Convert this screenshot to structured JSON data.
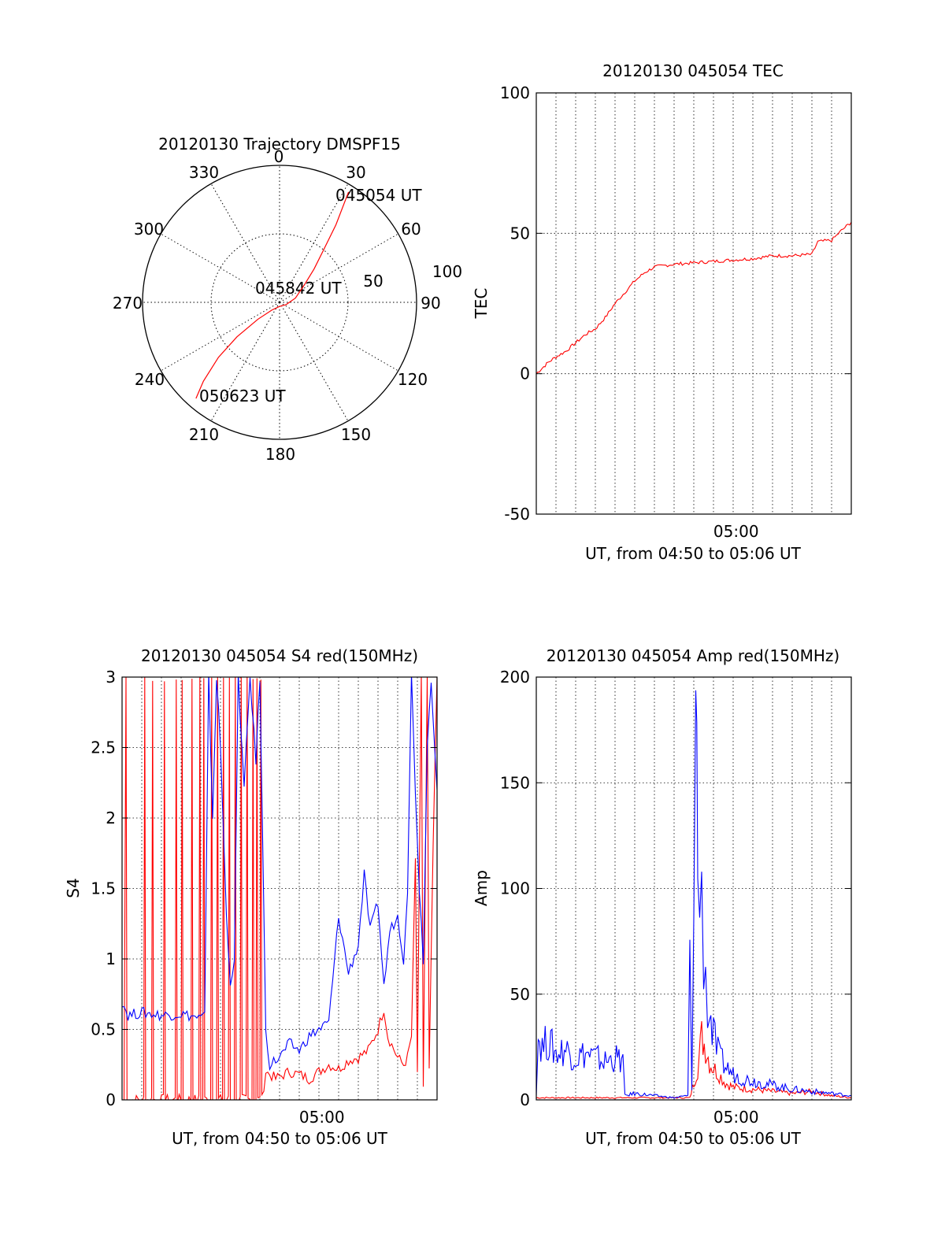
{
  "chart_data": [
    {
      "id": "polar",
      "type": "scatter",
      "title": "20120130 Trajectory DMSPF15",
      "subtype": "polar-trajectory",
      "azimuth_labels": [
        "0",
        "30",
        "60",
        "90",
        "120",
        "150",
        "180",
        "210",
        "240",
        "270",
        "300",
        "330"
      ],
      "radial_labels": [
        "50",
        "100"
      ],
      "trajectory": {
        "color": "#ff0000",
        "points": [
          [
            32,
            95
          ],
          [
            36,
            70
          ],
          [
            40,
            50
          ],
          [
            46,
            35
          ],
          [
            55,
            22
          ],
          [
            75,
            12
          ],
          [
            110,
            5
          ],
          [
            180,
            3
          ],
          [
            225,
            8
          ],
          [
            232,
            20
          ],
          [
            231,
            40
          ],
          [
            228,
            60
          ],
          [
            224,
            80
          ],
          [
            221,
            93
          ]
        ]
      },
      "annotations": [
        {
          "text": "045054 UT",
          "az": 36,
          "r": 100
        },
        {
          "text": "045842 UT",
          "az": 295,
          "r": 10
        },
        {
          "text": "050623 UT",
          "az": 224,
          "r": 93
        }
      ]
    },
    {
      "id": "tec",
      "type": "line",
      "title": "20120130 045054 TEC",
      "xlabel": "UT, from 04:50 to 05:06 UT",
      "ylabel": "TEC",
      "xlim": [
        0,
        16
      ],
      "ylim": [
        -50,
        100
      ],
      "yticks": [
        -50,
        0,
        50,
        100
      ],
      "xtick_labels": [
        {
          "x": 10.15,
          "label": "05:00"
        }
      ],
      "grid": true,
      "series": [
        {
          "color": "#ff0000",
          "points": [
            [
              0.0,
              0
            ],
            [
              0.3,
              2
            ],
            [
              0.6,
              4
            ],
            [
              1.0,
              6
            ],
            [
              1.5,
              8
            ],
            [
              2.0,
              11
            ],
            [
              2.5,
              14
            ],
            [
              3.0,
              16
            ],
            [
              3.5,
              20
            ],
            [
              4.0,
              25
            ],
            [
              4.5,
              29
            ],
            [
              5.0,
              33
            ],
            [
              5.5,
              36
            ],
            [
              6.0,
              38
            ],
            [
              7.0,
              39
            ],
            [
              8.0,
              39.5
            ],
            [
              9.0,
              40
            ],
            [
              10.0,
              40.5
            ],
            [
              11.0,
              41
            ],
            [
              12.0,
              42
            ],
            [
              13.0,
              42
            ],
            [
              14.0,
              42.5
            ],
            [
              14.3,
              47
            ],
            [
              15.0,
              47.5
            ],
            [
              15.5,
              51
            ],
            [
              16.0,
              54
            ]
          ]
        }
      ]
    },
    {
      "id": "s4",
      "type": "line",
      "title": "20120130 045054 S4 red(150MHz)",
      "xlabel": "UT, from 04:50 to 05:06 UT",
      "ylabel": "S4",
      "xlim": [
        0,
        16
      ],
      "ylim": [
        0,
        3
      ],
      "yticks": [
        0,
        0.5,
        1,
        1.5,
        2,
        2.5,
        3
      ],
      "xtick_labels": [
        {
          "x": 10.15,
          "label": "05:00"
        }
      ],
      "grid": true,
      "series": [
        {
          "color": "#ff0000",
          "points": [
            [
              0.1,
              0
            ],
            [
              0.2,
              3
            ],
            [
              0.25,
              0
            ],
            [
              1.1,
              0
            ],
            [
              1.15,
              3
            ],
            [
              1.2,
              0
            ],
            [
              1.5,
              0
            ],
            [
              1.55,
              3
            ],
            [
              1.6,
              0
            ],
            [
              2.1,
              0
            ],
            [
              2.15,
              3
            ],
            [
              2.2,
              0
            ],
            [
              2.7,
              0
            ],
            [
              2.75,
              3
            ],
            [
              2.8,
              0
            ],
            [
              3.0,
              0
            ],
            [
              3.05,
              3
            ],
            [
              3.1,
              0
            ],
            [
              3.5,
              0
            ],
            [
              3.55,
              3
            ],
            [
              3.6,
              0
            ],
            [
              3.9,
              0
            ],
            [
              3.95,
              3
            ],
            [
              4.0,
              0
            ],
            [
              4.1,
              0
            ],
            [
              4.15,
              3
            ],
            [
              4.2,
              0
            ],
            [
              4.5,
              0
            ],
            [
              4.55,
              3
            ],
            [
              4.6,
              0
            ],
            [
              4.8,
              0
            ],
            [
              4.85,
              3
            ],
            [
              4.9,
              0
            ],
            [
              5.1,
              0
            ],
            [
              5.15,
              3
            ],
            [
              5.2,
              0
            ],
            [
              5.4,
              0
            ],
            [
              5.45,
              3
            ],
            [
              5.5,
              0
            ],
            [
              5.7,
              0
            ],
            [
              5.75,
              3
            ],
            [
              5.8,
              0
            ],
            [
              6.0,
              0
            ],
            [
              6.05,
              3
            ],
            [
              6.1,
              0
            ],
            [
              6.3,
              0
            ],
            [
              6.35,
              3
            ],
            [
              6.4,
              0
            ],
            [
              6.6,
              0
            ],
            [
              6.65,
              3
            ],
            [
              6.7,
              0
            ],
            [
              6.8,
              0
            ],
            [
              6.85,
              3
            ],
            [
              6.9,
              0
            ],
            [
              7.0,
              0
            ],
            [
              7.05,
              3
            ],
            [
              7.1,
              0
            ],
            [
              7.3,
              0.2
            ],
            [
              7.8,
              0.15
            ],
            [
              8.5,
              0.2
            ],
            [
              9.0,
              0.18
            ],
            [
              9.5,
              0.15
            ],
            [
              10.0,
              0.2
            ],
            [
              10.5,
              0.25
            ],
            [
              11.0,
              0.22
            ],
            [
              11.5,
              0.28
            ],
            [
              12.0,
              0.3
            ],
            [
              12.5,
              0.35
            ],
            [
              13.0,
              0.5
            ],
            [
              13.3,
              0.65
            ],
            [
              13.5,
              0.45
            ],
            [
              14.0,
              0.3
            ],
            [
              14.3,
              0.25
            ],
            [
              14.5,
              0.3
            ],
            [
              14.7,
              0.45
            ],
            [
              14.9,
              1.7
            ],
            [
              15.0,
              0.2
            ],
            [
              15.2,
              3
            ],
            [
              15.3,
              0.1
            ],
            [
              15.5,
              3
            ],
            [
              15.6,
              0.2
            ],
            [
              15.8,
              1.8
            ],
            [
              16.0,
              3
            ]
          ]
        },
        {
          "color": "#0000ff",
          "points": [
            [
              0.0,
              0.7
            ],
            [
              0.3,
              0.6
            ],
            [
              1.0,
              0.62
            ],
            [
              2.0,
              0.6
            ],
            [
              3.0,
              0.61
            ],
            [
              4.0,
              0.58
            ],
            [
              4.2,
              0.6
            ],
            [
              4.4,
              3
            ],
            [
              4.6,
              2
            ],
            [
              4.8,
              3
            ],
            [
              5.0,
              2.5
            ],
            [
              5.3,
              1.3
            ],
            [
              5.5,
              0.85
            ],
            [
              5.7,
              0.95
            ],
            [
              5.9,
              3
            ],
            [
              6.2,
              2.2
            ],
            [
              6.5,
              3
            ],
            [
              6.8,
              2.4
            ],
            [
              7.0,
              3
            ],
            [
              7.3,
              0.5
            ],
            [
              7.5,
              0.25
            ],
            [
              8.0,
              0.3
            ],
            [
              8.5,
              0.4
            ],
            [
              9.0,
              0.35
            ],
            [
              9.5,
              0.45
            ],
            [
              10.0,
              0.5
            ],
            [
              10.5,
              0.55
            ],
            [
              11.0,
              1.3
            ],
            [
              11.5,
              0.9
            ],
            [
              12.0,
              1.1
            ],
            [
              12.3,
              1.6
            ],
            [
              12.6,
              1.2
            ],
            [
              13.0,
              1.4
            ],
            [
              13.3,
              0.8
            ],
            [
              13.6,
              1.2
            ],
            [
              14.0,
              1.3
            ],
            [
              14.3,
              1.0
            ],
            [
              14.5,
              1.5
            ],
            [
              14.7,
              3.0
            ],
            [
              14.9,
              2.2
            ],
            [
              15.1,
              1.5
            ],
            [
              15.3,
              1.0
            ],
            [
              15.5,
              2.5
            ],
            [
              15.7,
              3
            ],
            [
              16.0,
              2.2
            ]
          ]
        }
      ]
    },
    {
      "id": "amp",
      "type": "line",
      "title": "20120130 045054 Amp red(150MHz)",
      "xlabel": "UT, from 04:50 to 05:06 UT",
      "ylabel": "Amp",
      "xlim": [
        0,
        16
      ],
      "ylim": [
        0,
        200
      ],
      "yticks": [
        0,
        50,
        100,
        150,
        200
      ],
      "xtick_labels": [
        {
          "x": 10.15,
          "label": "05:00"
        }
      ],
      "grid": true,
      "series": [
        {
          "color": "#ff0000",
          "points": [
            [
              0.0,
              1
            ],
            [
              2.0,
              1
            ],
            [
              4.0,
              1
            ],
            [
              6.0,
              1
            ],
            [
              7.8,
              1
            ],
            [
              8.0,
              8
            ],
            [
              8.2,
              15
            ],
            [
              8.4,
              30
            ],
            [
              8.6,
              25
            ],
            [
              8.8,
              18
            ],
            [
              9.0,
              15
            ],
            [
              9.3,
              12
            ],
            [
              9.6,
              8
            ],
            [
              10.0,
              6
            ],
            [
              11.0,
              5
            ],
            [
              12.0,
              4
            ],
            [
              13.0,
              3
            ],
            [
              14.0,
              4
            ],
            [
              15.0,
              2
            ],
            [
              16.0,
              1
            ]
          ]
        },
        {
          "color": "#0000ff",
          "points": [
            [
              0.0,
              3
            ],
            [
              0.1,
              30
            ],
            [
              0.3,
              25
            ],
            [
              0.6,
              28
            ],
            [
              1.0,
              22
            ],
            [
              1.5,
              24
            ],
            [
              2.0,
              20
            ],
            [
              2.5,
              22
            ],
            [
              3.0,
              20
            ],
            [
              3.5,
              18
            ],
            [
              4.0,
              20
            ],
            [
              4.4,
              18
            ],
            [
              4.5,
              2
            ],
            [
              5.0,
              3
            ],
            [
              6.0,
              2
            ],
            [
              7.0,
              1
            ],
            [
              7.7,
              2
            ],
            [
              7.8,
              60
            ],
            [
              7.9,
              5
            ],
            [
              8.0,
              120
            ],
            [
              8.1,
              180
            ],
            [
              8.15,
              160
            ],
            [
              8.2,
              110
            ],
            [
              8.3,
              95
            ],
            [
              8.4,
              90
            ],
            [
              8.5,
              75
            ],
            [
              8.6,
              60
            ],
            [
              8.7,
              45
            ],
            [
              8.8,
              40
            ],
            [
              9.0,
              30
            ],
            [
              9.3,
              20
            ],
            [
              9.6,
              16
            ],
            [
              10.0,
              12
            ],
            [
              10.5,
              10
            ],
            [
              11.0,
              9
            ],
            [
              11.5,
              8
            ],
            [
              12.0,
              7
            ],
            [
              13.0,
              5
            ],
            [
              14.0,
              4
            ],
            [
              15.0,
              3
            ],
            [
              16.0,
              2
            ]
          ]
        }
      ]
    }
  ]
}
